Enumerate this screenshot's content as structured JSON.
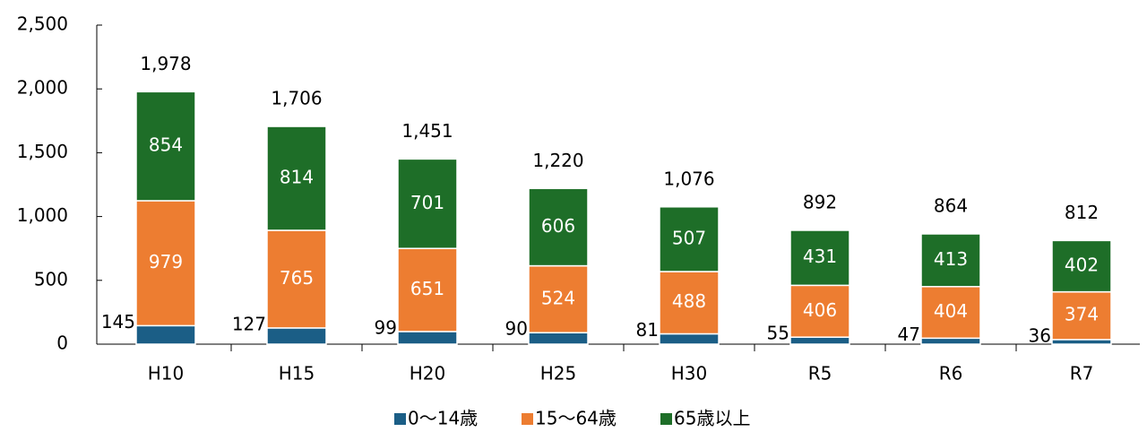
{
  "chart_data": {
    "type": "stacked_bar",
    "categories": [
      "H10",
      "H15",
      "H20",
      "H25",
      "H30",
      "R5",
      "R6",
      "R7"
    ],
    "series": [
      {
        "name": "0～14歳",
        "color": "#1b5e86",
        "values": [
          145,
          127,
          99,
          90,
          81,
          55,
          47,
          36
        ]
      },
      {
        "name": "15～64歳",
        "color": "#ed7d31",
        "values": [
          979,
          765,
          651,
          524,
          488,
          406,
          404,
          374
        ]
      },
      {
        "name": "65歳以上",
        "color": "#1e6e28",
        "values": [
          854,
          814,
          701,
          606,
          507,
          431,
          413,
          402
        ]
      }
    ],
    "totals": [
      1978,
      1706,
      1451,
      1220,
      1076,
      892,
      864,
      812
    ],
    "total_labels": [
      "1,978",
      "1,706",
      "1,451",
      "1,220",
      "1,076",
      "892",
      "864",
      "812"
    ],
    "ylim": [
      0,
      2500
    ],
    "yticks": [
      0,
      500,
      {
        "value": 1000,
        "label": "1,000"
      },
      {
        "value": 1500,
        "label": "1,500"
      },
      {
        "value": 2000,
        "label": "2,000"
      },
      {
        "value": 2500,
        "label": "2,500"
      }
    ],
    "legend": "bottom"
  }
}
